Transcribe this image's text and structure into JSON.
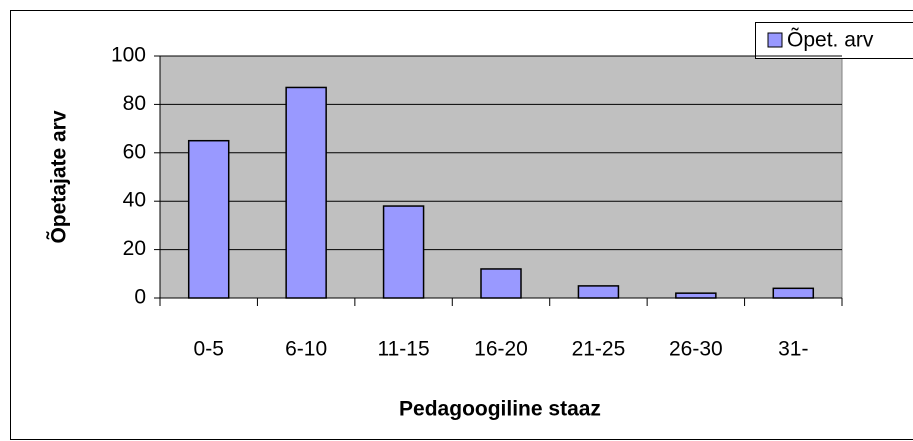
{
  "chart_data": {
    "type": "bar",
    "x_label": "Pedagoogiline staaz",
    "y_label": "Õpetajate arv",
    "categories": [
      "0-5",
      "6-10",
      "11-15",
      "16-20",
      "21-25",
      "26-30",
      "31-"
    ],
    "series": [
      {
        "name": "Õpet. arv",
        "color": "#9999ff",
        "values": [
          65,
          87,
          38,
          12,
          5,
          2,
          4
        ]
      }
    ],
    "ylim": [
      0,
      100
    ],
    "yticks": [
      0,
      20,
      40,
      60,
      80,
      100
    ],
    "grid": true,
    "legend": "top-right"
  }
}
